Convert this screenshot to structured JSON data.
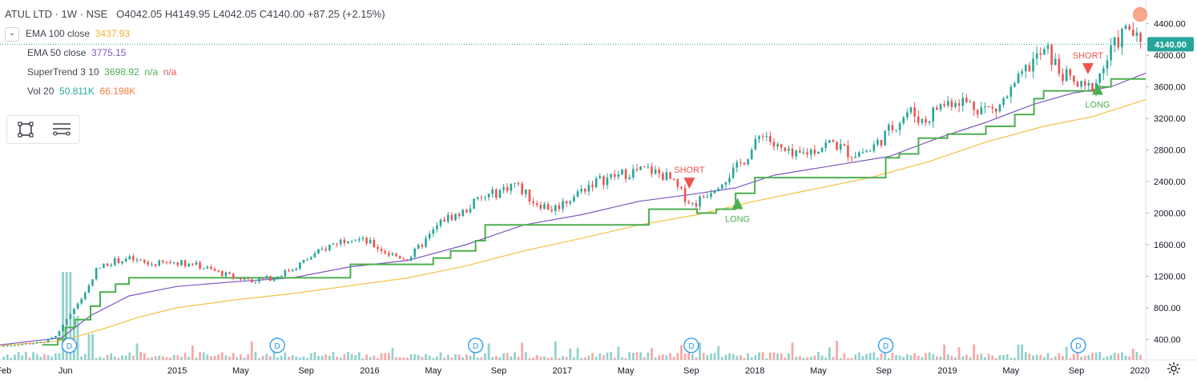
{
  "header": {
    "symbol": "ATUL LTD · 1W · NSE",
    "ohlc": "O4042.05  H4149.95  L4042.05  C4140.00  +87.25 (+2.15%)"
  },
  "indicators": [
    {
      "name": "EMA 100 close",
      "values": [
        "3437.93"
      ],
      "colors": [
        "#f0b429"
      ]
    },
    {
      "name": "EMA 50 close",
      "values": [
        "3775.15"
      ],
      "colors": [
        "#7e57c2"
      ]
    },
    {
      "name": "SuperTrend 3 10",
      "values": [
        "3698.92",
        "n/a",
        "n/a"
      ],
      "colors": [
        "#4caf50",
        "#4caf50",
        "#ef5350"
      ]
    },
    {
      "name": "Vol 20",
      "values": [
        "50.811K",
        "66.198K"
      ],
      "colors": [
        "#26a69a",
        "#f57c3b"
      ]
    }
  ],
  "last_price_label": "4140.00",
  "colors": {
    "up": "#26a69a",
    "down": "#ef5350",
    "ema100": "#f5c043",
    "ema50": "#7e57c2",
    "supertrend": "#4caf50",
    "short": "#ef5350",
    "long": "#4caf50",
    "dividend": "#2196f3",
    "axis_text": "#131722"
  },
  "chart_data": {
    "type": "candlestick",
    "y_ticks": [
      400,
      800,
      1200,
      1600,
      2000,
      2400,
      2800,
      3200,
      3600,
      4000,
      4400
    ],
    "y_tick_labels": [
      "400.00",
      "800.00",
      "1200.00",
      "1600.00",
      "2000.00",
      "2400.00",
      "2800.00",
      "3200.00",
      "3600.00",
      "4000.00",
      "4400.00"
    ],
    "ylim": [
      140,
      4620
    ],
    "x_labels": [
      {
        "label": "Feb",
        "t": 2014.1
      },
      {
        "label": "Jun",
        "t": 2014.42
      },
      {
        "label": "2015",
        "t": 2015.0
      },
      {
        "label": "May",
        "t": 2015.33
      },
      {
        "label": "Sep",
        "t": 2015.67
      },
      {
        "label": "2016",
        "t": 2016.0
      },
      {
        "label": "May",
        "t": 2016.33
      },
      {
        "label": "Sep",
        "t": 2016.67
      },
      {
        "label": "2017",
        "t": 2017.0
      },
      {
        "label": "May",
        "t": 2017.33
      },
      {
        "label": "Sep",
        "t": 2017.67
      },
      {
        "label": "2018",
        "t": 2018.0
      },
      {
        "label": "May",
        "t": 2018.33
      },
      {
        "label": "Sep",
        "t": 2018.67
      },
      {
        "label": "2019",
        "t": 2019.0
      },
      {
        "label": "May",
        "t": 2019.33
      },
      {
        "label": "Sep",
        "t": 2019.67
      },
      {
        "label": "2020",
        "t": 2020.0
      }
    ],
    "xlim": [
      2014.08,
      2020.03
    ],
    "price_path": [
      [
        2014.08,
        310
      ],
      [
        2014.2,
        340
      ],
      [
        2014.3,
        360
      ],
      [
        2014.38,
        450
      ],
      [
        2014.42,
        650
      ],
      [
        2014.47,
        800
      ],
      [
        2014.52,
        1000
      ],
      [
        2014.58,
        1280
      ],
      [
        2014.65,
        1380
      ],
      [
        2014.75,
        1420
      ],
      [
        2014.85,
        1350
      ],
      [
        2015.0,
        1380
      ],
      [
        2015.1,
        1340
      ],
      [
        2015.2,
        1260
      ],
      [
        2015.3,
        1180
      ],
      [
        2015.4,
        1150
      ],
      [
        2015.5,
        1180
      ],
      [
        2015.6,
        1300
      ],
      [
        2015.7,
        1450
      ],
      [
        2015.8,
        1600
      ],
      [
        2015.9,
        1700
      ],
      [
        2016.0,
        1620
      ],
      [
        2016.1,
        1480
      ],
      [
        2016.2,
        1420
      ],
      [
        2016.3,
        1680
      ],
      [
        2016.38,
        1920
      ],
      [
        2016.48,
        2000
      ],
      [
        2016.55,
        2150
      ],
      [
        2016.65,
        2250
      ],
      [
        2016.75,
        2380
      ],
      [
        2016.85,
        2150
      ],
      [
        2016.95,
        2050
      ],
      [
        2017.05,
        2200
      ],
      [
        2017.15,
        2380
      ],
      [
        2017.25,
        2450
      ],
      [
        2017.35,
        2520
      ],
      [
        2017.45,
        2550
      ],
      [
        2017.55,
        2450
      ],
      [
        2017.62,
        2250
      ],
      [
        2017.68,
        2100
      ],
      [
        2017.75,
        2250
      ],
      [
        2017.82,
        2400
      ],
      [
        2017.9,
        2550
      ],
      [
        2018.0,
        2850
      ],
      [
        2018.04,
        3050
      ],
      [
        2018.1,
        2850
      ],
      [
        2018.2,
        2700
      ],
      [
        2018.3,
        2800
      ],
      [
        2018.4,
        2900
      ],
      [
        2018.5,
        2750
      ],
      [
        2018.6,
        2800
      ],
      [
        2018.7,
        3050
      ],
      [
        2018.8,
        3300
      ],
      [
        2018.88,
        3150
      ],
      [
        2018.95,
        3350
      ],
      [
        2019.05,
        3450
      ],
      [
        2019.15,
        3350
      ],
      [
        2019.25,
        3300
      ],
      [
        2019.35,
        3600
      ],
      [
        2019.45,
        3950
      ],
      [
        2019.52,
        4050
      ],
      [
        2019.58,
        3800
      ],
      [
        2019.65,
        3650
      ],
      [
        2019.72,
        3550
      ],
      [
        2019.78,
        3700
      ],
      [
        2019.84,
        4000
      ],
      [
        2019.9,
        4250
      ],
      [
        2019.95,
        4350
      ],
      [
        2020.0,
        4100
      ],
      [
        2020.03,
        4140
      ]
    ],
    "ema50_path": [
      [
        2014.08,
        330
      ],
      [
        2014.4,
        420
      ],
      [
        2014.55,
        700
      ],
      [
        2014.75,
        950
      ],
      [
        2015.0,
        1070
      ],
      [
        2015.3,
        1130
      ],
      [
        2015.6,
        1180
      ],
      [
        2015.9,
        1320
      ],
      [
        2016.2,
        1400
      ],
      [
        2016.5,
        1600
      ],
      [
        2016.8,
        1850
      ],
      [
        2017.1,
        1980
      ],
      [
        2017.4,
        2150
      ],
      [
        2017.65,
        2230
      ],
      [
        2017.9,
        2320
      ],
      [
        2018.1,
        2480
      ],
      [
        2018.4,
        2600
      ],
      [
        2018.7,
        2720
      ],
      [
        2018.95,
        2950
      ],
      [
        2019.2,
        3150
      ],
      [
        2019.45,
        3380
      ],
      [
        2019.65,
        3520
      ],
      [
        2019.85,
        3600
      ],
      [
        2020.03,
        3775
      ]
    ],
    "ema100_path": [
      [
        2014.08,
        320
      ],
      [
        2014.4,
        380
      ],
      [
        2014.6,
        520
      ],
      [
        2014.8,
        680
      ],
      [
        2015.0,
        800
      ],
      [
        2015.3,
        900
      ],
      [
        2015.6,
        980
      ],
      [
        2015.9,
        1080
      ],
      [
        2016.2,
        1180
      ],
      [
        2016.5,
        1330
      ],
      [
        2016.8,
        1520
      ],
      [
        2017.1,
        1680
      ],
      [
        2017.4,
        1850
      ],
      [
        2017.7,
        1980
      ],
      [
        2018.0,
        2150
      ],
      [
        2018.3,
        2300
      ],
      [
        2018.6,
        2450
      ],
      [
        2018.9,
        2650
      ],
      [
        2019.2,
        2900
      ],
      [
        2019.5,
        3100
      ],
      [
        2019.75,
        3220
      ],
      [
        2020.03,
        3438
      ]
    ],
    "supertrend_path": [
      [
        2014.3,
        330
      ],
      [
        2014.38,
        400
      ],
      [
        2014.42,
        550
      ],
      [
        2014.47,
        650
      ],
      [
        2014.55,
        820
      ],
      [
        2014.6,
        1000
      ],
      [
        2014.68,
        1100
      ],
      [
        2014.75,
        1180
      ],
      [
        2014.85,
        1180
      ],
      [
        2015.0,
        1180
      ],
      [
        2015.3,
        1180
      ],
      [
        2015.55,
        1180
      ],
      [
        2015.8,
        1180
      ],
      [
        2015.9,
        1350
      ],
      [
        2016.0,
        1350
      ],
      [
        2016.2,
        1350
      ],
      [
        2016.33,
        1430
      ],
      [
        2016.42,
        1520
      ],
      [
        2016.55,
        1650
      ],
      [
        2016.6,
        1850
      ],
      [
        2016.75,
        1850
      ],
      [
        2016.95,
        1850
      ],
      [
        2017.35,
        1850
      ],
      [
        2017.45,
        2050
      ],
      [
        2017.6,
        2050
      ],
      [
        2017.7,
        2000
      ],
      [
        2017.8,
        2050
      ],
      [
        2017.9,
        2250
      ],
      [
        2018.0,
        2450
      ],
      [
        2018.3,
        2450
      ],
      [
        2018.6,
        2450
      ],
      [
        2018.68,
        2700
      ],
      [
        2018.75,
        2750
      ],
      [
        2018.85,
        2950
      ],
      [
        2019.0,
        3000
      ],
      [
        2019.2,
        3100
      ],
      [
        2019.35,
        3250
      ],
      [
        2019.45,
        3450
      ],
      [
        2019.5,
        3550
      ],
      [
        2019.7,
        3550
      ],
      [
        2019.78,
        3600
      ],
      [
        2019.85,
        3700
      ],
      [
        2020.03,
        3700
      ]
    ],
    "signals": [
      {
        "type": "SHORT",
        "t": 2017.66,
        "price": 2450
      },
      {
        "type": "LONG",
        "t": 2017.91,
        "price": 2050
      },
      {
        "type": "SHORT",
        "t": 2019.73,
        "price": 3900
      },
      {
        "type": "LONG",
        "t": 2019.78,
        "price": 3500
      }
    ],
    "dividend_markers": [
      2014.44,
      2015.52,
      2016.55,
      2017.67,
      2018.68,
      2019.68
    ],
    "dividend_label": "D"
  }
}
